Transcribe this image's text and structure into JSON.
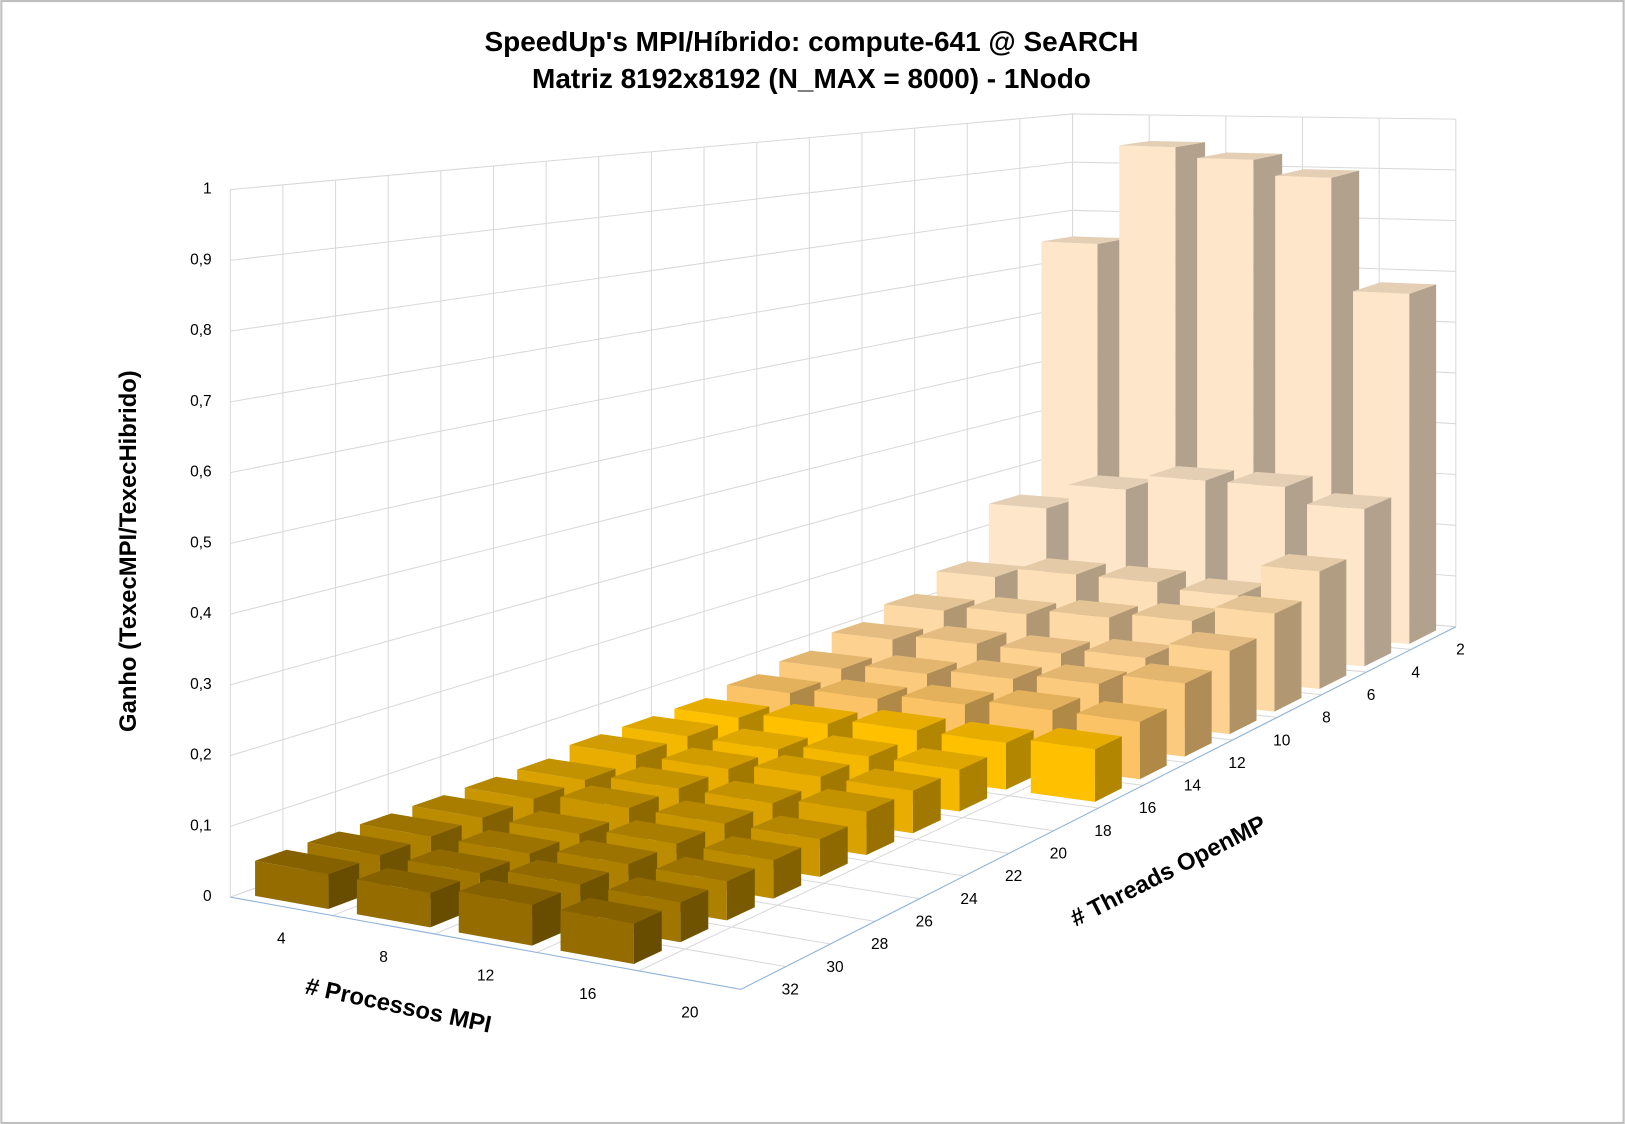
{
  "chart_data": {
    "type": "bar3d",
    "title": "SpeedUp's MPI/Híbrido: compute-641 @ SeARCH",
    "subtitle": "Matriz 8192x8192 (N_MAX = 8000) - 1Nodo",
    "y_label": "Ganho (TexecMPI/TexecHibrido)",
    "x_label": "# Processos MPI",
    "z_label": "# Threads OpenMP",
    "categories": [
      "4",
      "8",
      "12",
      "16",
      "20"
    ],
    "ylim": [
      0,
      1
    ],
    "yticks": [
      0,
      {
        "value": 0.1,
        "label": "0,1"
      },
      {
        "value": 0.2,
        "label": "0,2"
      },
      {
        "value": 0.3,
        "label": "0,3"
      },
      {
        "value": 0.4,
        "label": "0,4"
      },
      {
        "value": 0.5,
        "label": "0,5"
      },
      {
        "value": 0.6,
        "label": "0,6"
      },
      {
        "value": 0.7,
        "label": "0,7"
      },
      {
        "value": 0.8,
        "label": "0,8"
      },
      {
        "value": 0.9,
        "label": "0,9"
      },
      1
    ],
    "grid": true,
    "series": [
      {
        "name": "2",
        "color": "#fde6c9",
        "values": [
          0.75,
          0.95,
          0.93,
          0.9,
          0.68
        ]
      },
      {
        "name": "4",
        "color": "#fde6c9",
        "values": [
          0.25,
          0.3,
          0.33,
          0.33,
          0.3
        ]
      },
      {
        "name": "6",
        "color": "#fde0b8",
        "values": [
          0.15,
          0.17,
          0.17,
          0.16,
          0.22
        ]
      },
      {
        "name": "8",
        "color": "#fdd9a5",
        "values": [
          0.12,
          0.13,
          0.14,
          0.15,
          0.18
        ]
      },
      {
        "name": "10",
        "color": "#fdd190",
        "values": [
          0.1,
          0.11,
          0.11,
          0.12,
          0.15
        ]
      },
      {
        "name": "12",
        "color": "#fcca7c",
        "values": [
          0.08,
          0.09,
          0.1,
          0.11,
          0.13
        ]
      },
      {
        "name": "14",
        "color": "#fcc366",
        "values": [
          0.07,
          0.08,
          0.09,
          0.1,
          0.1
        ]
      },
      {
        "name": "16",
        "color": "#ffc000",
        "values": [
          0.06,
          0.07,
          0.08,
          0.08,
          0.09
        ]
      },
      {
        "name": "18",
        "color": "#f5b800",
        "values": [
          0.06,
          0.06,
          0.07,
          0.07,
          null
        ]
      },
      {
        "name": "20",
        "color": "#e8ad00",
        "values": [
          0.06,
          0.06,
          0.07,
          0.07,
          null
        ]
      },
      {
        "name": "22",
        "color": "#d9a200",
        "values": [
          0.05,
          0.06,
          0.06,
          0.07,
          null
        ]
      },
      {
        "name": "24",
        "color": "#c99600",
        "values": [
          0.05,
          0.06,
          0.06,
          0.06,
          null
        ]
      },
      {
        "name": "26",
        "color": "#bb8b00",
        "values": [
          0.05,
          0.05,
          0.06,
          0.06,
          null
        ]
      },
      {
        "name": "28",
        "color": "#ad8000",
        "values": [
          0.05,
          0.05,
          0.06,
          0.06,
          null
        ]
      },
      {
        "name": "30",
        "color": "#a07600",
        "values": [
          0.05,
          0.05,
          0.06,
          0.06,
          null
        ]
      },
      {
        "name": "32",
        "color": "#946c00",
        "values": [
          0.05,
          0.05,
          0.06,
          0.06,
          null
        ]
      }
    ]
  }
}
